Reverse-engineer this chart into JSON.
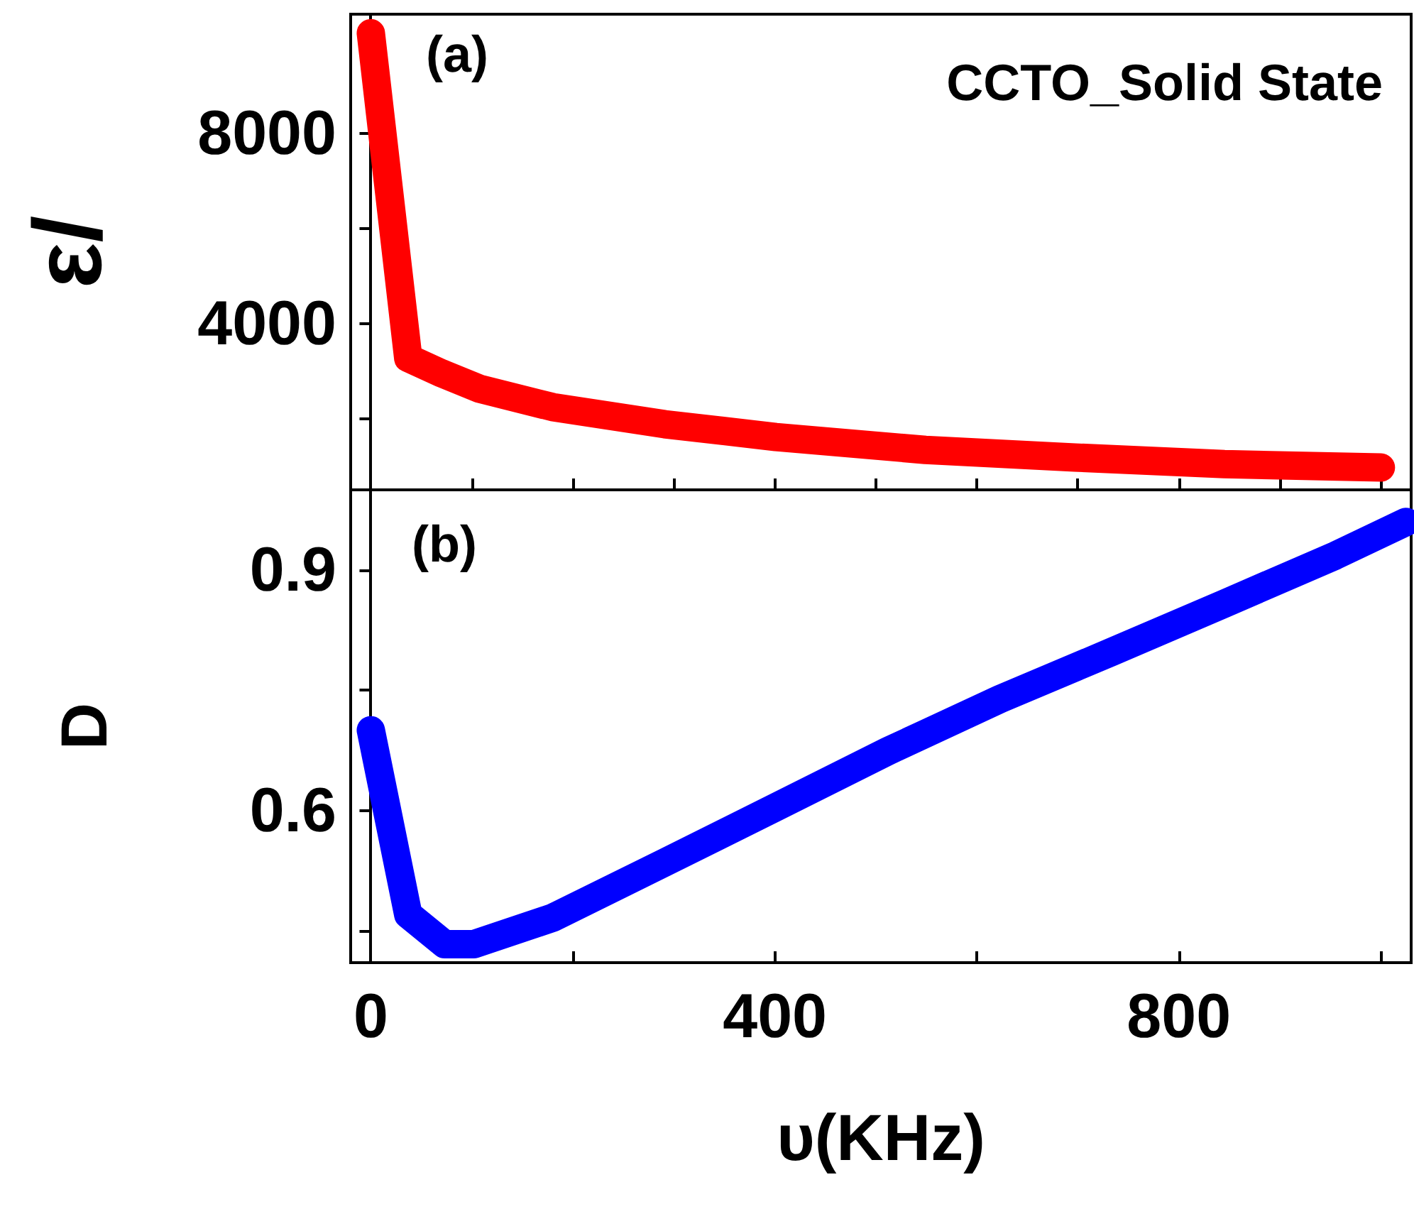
{
  "chart_data": [
    {
      "type": "line",
      "ylabel": "ε/",
      "annotations": [
        "(a)",
        "CCTO_Solid State"
      ],
      "x": [
        0,
        37,
        70,
        107,
        180,
        291,
        401,
        549,
        697,
        845,
        1000
      ],
      "series": [
        {
          "color": "#ff0000",
          "values": [
            10100,
            3270,
            2950,
            2630,
            2240,
            1880,
            1610,
            1340,
            1180,
            1040,
            970
          ]
        }
      ],
      "xlim": [
        -20,
        1030
      ],
      "xticks": [
        {
          "value": 0,
          "label": null
        },
        {
          "value": 100,
          "label": null
        },
        {
          "value": 200,
          "label": null
        },
        {
          "value": 300,
          "label": null
        },
        {
          "value": 400,
          "label": null
        },
        {
          "value": 500,
          "label": null
        },
        {
          "value": 600,
          "label": null
        },
        {
          "value": 700,
          "label": null
        },
        {
          "value": 800,
          "label": null
        },
        {
          "value": 900,
          "label": null
        },
        {
          "value": 1000,
          "label": null
        }
      ],
      "ylim": [
        500,
        10500
      ],
      "yticks": [
        {
          "value": 2000,
          "label": null
        },
        4000,
        {
          "value": 6000,
          "label": null
        },
        8000,
        {
          "value": 10000,
          "label": null
        }
      ],
      "tick_labels": "y",
      "line_style": "solid"
    },
    {
      "type": "line",
      "ylabel": "D",
      "xlabel": "υ(KHz)",
      "annotations": [
        "(b)"
      ],
      "x": [
        0,
        37,
        73,
        102,
        180,
        291,
        401,
        512,
        623,
        734,
        845,
        955,
        1025
      ],
      "series": [
        {
          "color": "#0000ff",
          "values": [
            0.7,
            0.47,
            0.433,
            0.433,
            0.466,
            0.535,
            0.604,
            0.674,
            0.739,
            0.798,
            0.858,
            0.918,
            0.96
          ]
        }
      ],
      "xlim": [
        -20,
        1030
      ],
      "xticks": [
        0,
        {
          "value": 200,
          "label": null
        },
        400,
        {
          "value": 600,
          "label": null
        },
        800,
        {
          "value": 1000,
          "label": null
        }
      ],
      "ylim": [
        0.41,
        1.0
      ],
      "yticks": [
        {
          "value": 0.45,
          "label": null
        },
        0.6,
        {
          "value": 0.75,
          "label": null
        },
        0.9
      ],
      "line_style": "solid"
    }
  ]
}
